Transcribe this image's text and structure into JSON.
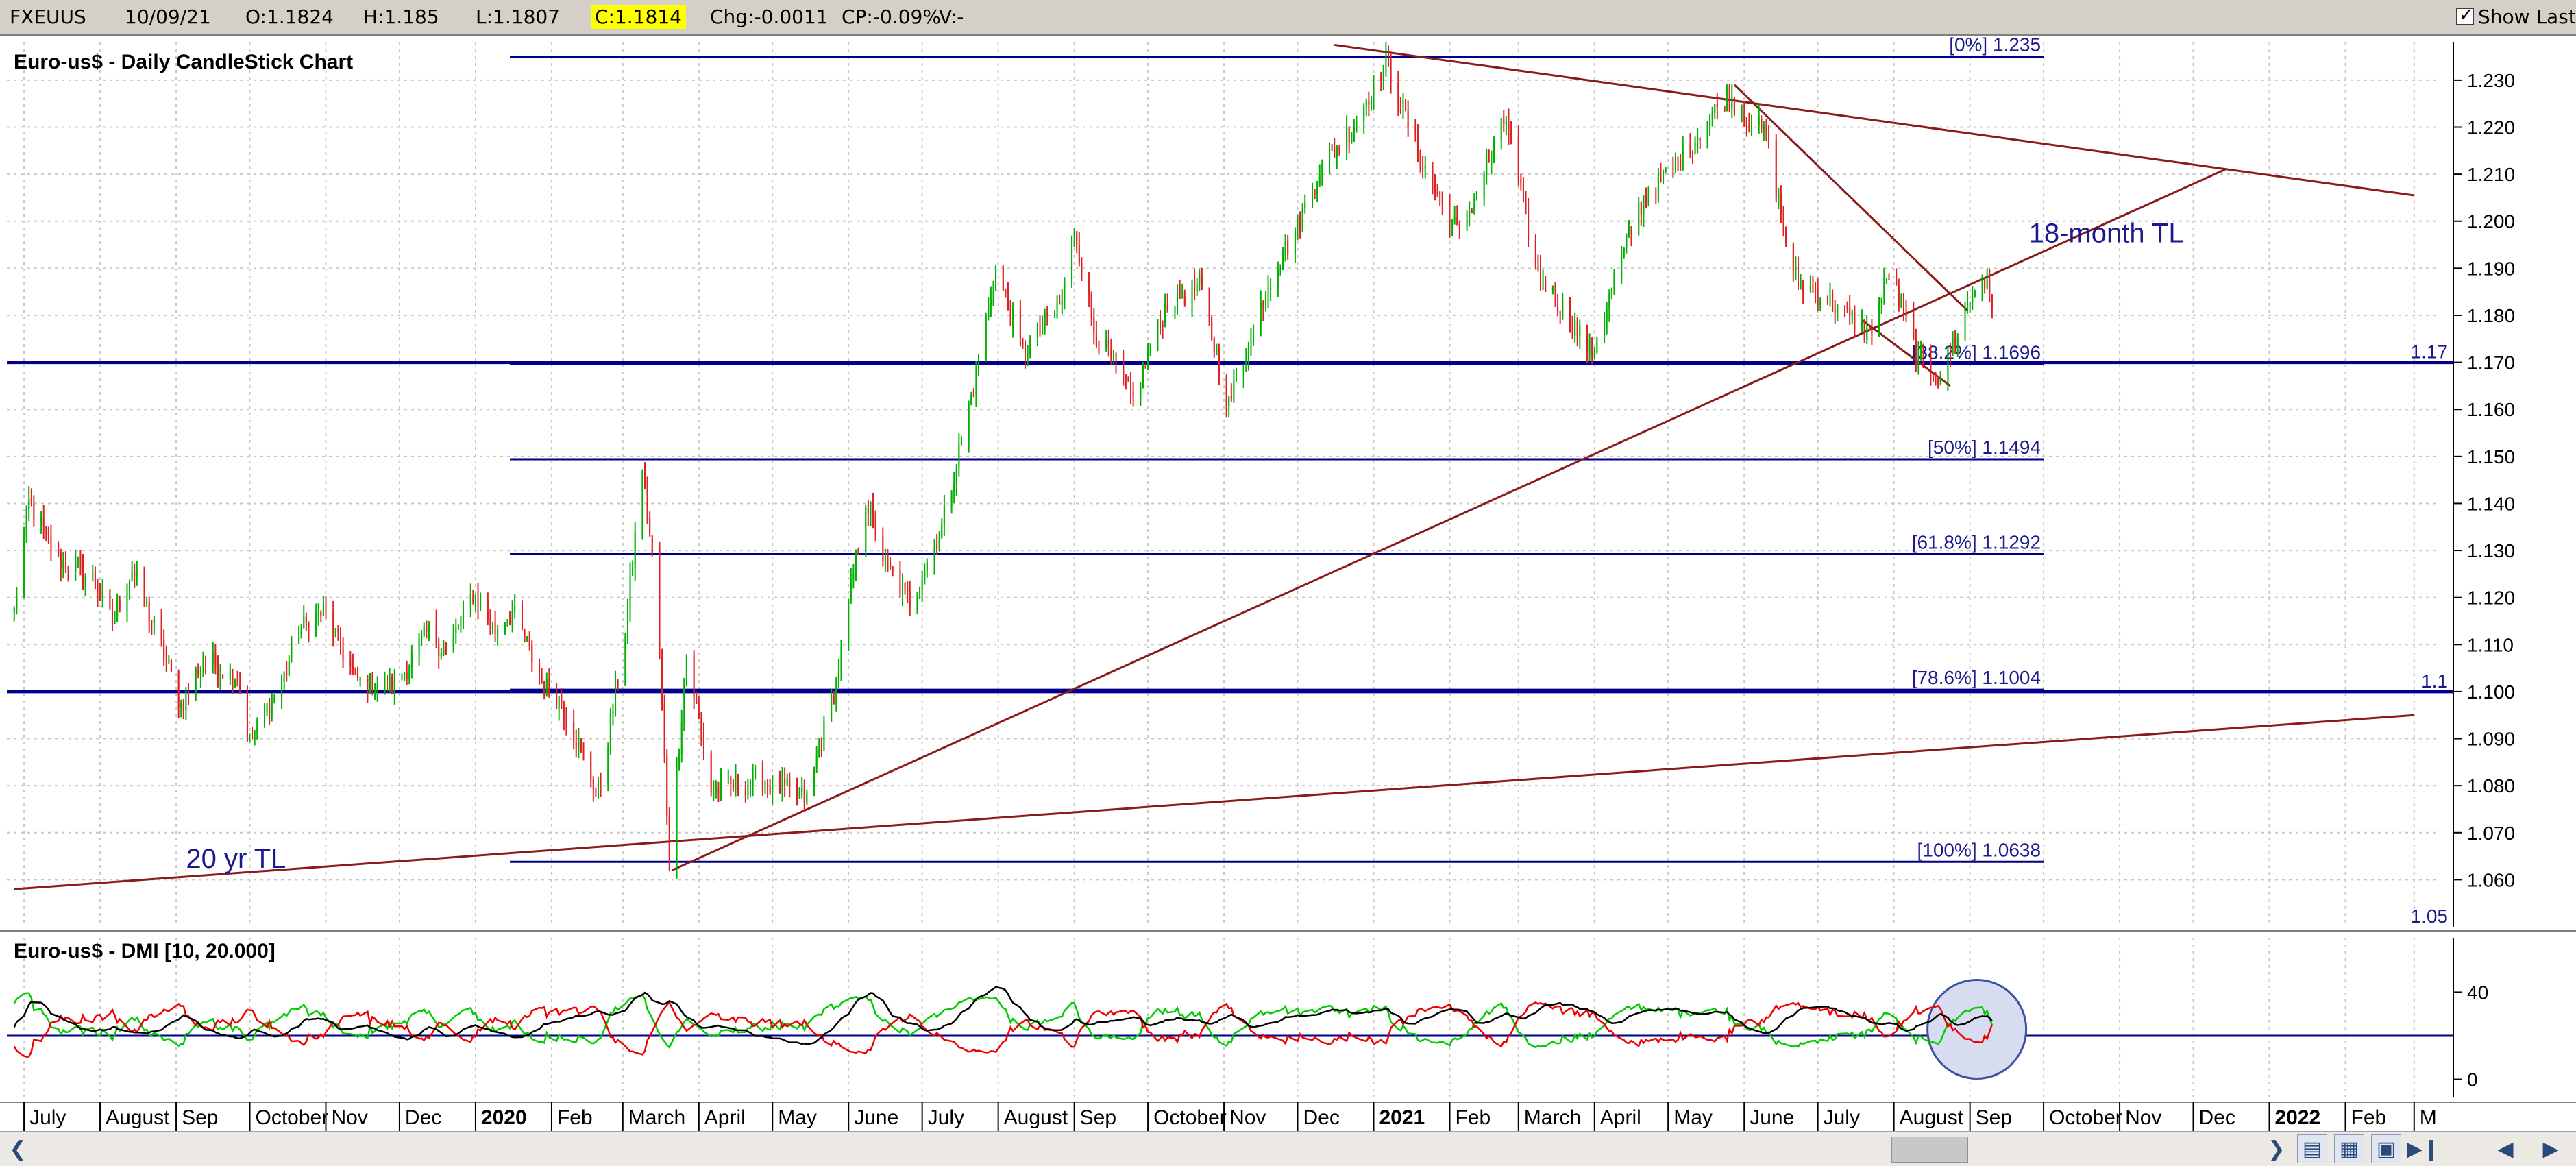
{
  "infobar": {
    "symbol": "FXEUUS",
    "date": "10/09/21",
    "open": "O:1.1824",
    "high": "H:1.185",
    "low": "L:1.1807",
    "close": "C:1.1814",
    "change": "Chg:-0.0011",
    "change_pct": "CP:-0.09%",
    "volume": "V:-",
    "show_last_label": "Show Last",
    "show_last_checked": true
  },
  "colors": {
    "up_candle": "#00b000",
    "down_candle": "#e02020",
    "trendline": "#8b1a1a",
    "fib_line": "#00008b",
    "annotation_text": "#1a1a8c",
    "adx_line": "#000000",
    "plus_di": "#00cc00",
    "minus_di": "#ee0000",
    "highlight_circle_fill": "#d8dcf0",
    "highlight_circle_stroke": "#4050a0",
    "grid": "#c8c8c8"
  },
  "icons": [
    "scroll-left-icon",
    "scroll-right-icon",
    "zoom-out-icon",
    "zoom-in-icon",
    "fit-icon",
    "end-icon",
    "page-left-icon",
    "page-right-icon"
  ],
  "chart_data": [
    {
      "type": "candlestick",
      "title": "Euro-us$ - Daily CandleStick Chart",
      "ylim": [
        1.05,
        1.238
      ],
      "yticks": [
        "1.060",
        "1.070",
        "1.080",
        "1.090",
        "1.100",
        "1.110",
        "1.120",
        "1.130",
        "1.140",
        "1.150",
        "1.160",
        "1.170",
        "1.180",
        "1.190",
        "1.200",
        "1.210",
        "1.220",
        "1.230"
      ],
      "axis_markers": [
        {
          "label": "1.17",
          "value": 1.17
        },
        {
          "label": "1.1",
          "value": 1.1
        },
        {
          "label": "1.05",
          "value": 1.05
        }
      ],
      "x_months": [
        "July",
        "August",
        "Sep",
        "October",
        "Nov",
        "Dec",
        "2020",
        "Feb",
        "March",
        "April",
        "May",
        "June",
        "July",
        "August",
        "Sep",
        "October",
        "Nov",
        "Dec",
        "2021",
        "Feb",
        "March",
        "April",
        "May",
        "June",
        "July",
        "August",
        "Sep",
        "October",
        "Nov",
        "Dec",
        "2022",
        "Feb",
        "M"
      ],
      "x_years_bold": [
        "2020",
        "2021",
        "2022"
      ],
      "x_range": [
        "2019-07",
        "2022-03"
      ],
      "grid": true,
      "price_path": [
        {
          "date": "2019-06-27",
          "value": 1.117
        },
        {
          "date": "2019-07-03",
          "value": 1.14
        },
        {
          "date": "2019-07-15",
          "value": 1.128
        },
        {
          "date": "2019-07-29",
          "value": 1.124
        },
        {
          "date": "2019-08-06",
          "value": 1.115
        },
        {
          "date": "2019-08-14",
          "value": 1.126
        },
        {
          "date": "2019-08-27",
          "value": 1.108
        },
        {
          "date": "2019-09-03",
          "value": 1.097
        },
        {
          "date": "2019-09-12",
          "value": 1.107
        },
        {
          "date": "2019-09-26",
          "value": 1.103
        },
        {
          "date": "2019-10-01",
          "value": 1.089
        },
        {
          "date": "2019-10-15",
          "value": 1.103
        },
        {
          "date": "2019-10-21",
          "value": 1.113
        },
        {
          "date": "2019-10-31",
          "value": 1.117
        },
        {
          "date": "2019-11-14",
          "value": 1.102
        },
        {
          "date": "2019-11-29",
          "value": 1.101
        },
        {
          "date": "2019-12-13",
          "value": 1.113
        },
        {
          "date": "2019-12-20",
          "value": 1.108
        },
        {
          "date": "2019-12-31",
          "value": 1.121
        },
        {
          "date": "2020-01-09",
          "value": 1.113
        },
        {
          "date": "2020-01-16",
          "value": 1.117
        },
        {
          "date": "2020-01-29",
          "value": 1.101
        },
        {
          "date": "2020-02-05",
          "value": 1.098
        },
        {
          "date": "2020-02-20",
          "value": 1.078
        },
        {
          "date": "2020-03-02",
          "value": 1.112
        },
        {
          "date": "2020-03-09",
          "value": 1.148
        },
        {
          "date": "2020-03-15",
          "value": 1.118
        },
        {
          "date": "2020-03-20",
          "value": 1.064
        },
        {
          "date": "2020-03-27",
          "value": 1.108
        },
        {
          "date": "2020-04-06",
          "value": 1.079
        },
        {
          "date": "2020-04-27",
          "value": 1.081
        },
        {
          "date": "2020-05-15",
          "value": 1.077
        },
        {
          "date": "2020-05-27",
          "value": 1.102
        },
        {
          "date": "2020-06-08",
          "value": 1.141
        },
        {
          "date": "2020-06-16",
          "value": 1.127
        },
        {
          "date": "2020-06-26",
          "value": 1.119
        },
        {
          "date": "2020-07-09",
          "value": 1.135
        },
        {
          "date": "2020-07-22",
          "value": 1.165
        },
        {
          "date": "2020-07-31",
          "value": 1.19
        },
        {
          "date": "2020-08-11",
          "value": 1.172
        },
        {
          "date": "2020-08-27",
          "value": 1.183
        },
        {
          "date": "2020-09-01",
          "value": 1.199
        },
        {
          "date": "2020-09-09",
          "value": 1.177
        },
        {
          "date": "2020-09-25",
          "value": 1.162
        },
        {
          "date": "2020-10-09",
          "value": 1.183
        },
        {
          "date": "2020-10-22",
          "value": 1.186
        },
        {
          "date": "2020-11-03",
          "value": 1.161
        },
        {
          "date": "2020-11-19",
          "value": 1.187
        },
        {
          "date": "2020-12-01",
          "value": 1.199
        },
        {
          "date": "2020-12-10",
          "value": 1.211
        },
        {
          "date": "2020-12-23",
          "value": 1.22
        },
        {
          "date": "2021-01-06",
          "value": 1.234
        },
        {
          "date": "2021-01-21",
          "value": 1.212
        },
        {
          "date": "2021-02-05",
          "value": 1.197
        },
        {
          "date": "2021-02-24",
          "value": 1.222
        },
        {
          "date": "2021-03-08",
          "value": 1.19
        },
        {
          "date": "2021-03-31",
          "value": 1.172
        },
        {
          "date": "2021-04-19",
          "value": 1.203
        },
        {
          "date": "2021-05-07",
          "value": 1.214
        },
        {
          "date": "2021-05-25",
          "value": 1.227
        },
        {
          "date": "2021-06-10",
          "value": 1.218
        },
        {
          "date": "2021-06-21",
          "value": 1.188
        },
        {
          "date": "2021-07-06",
          "value": 1.183
        },
        {
          "date": "2021-07-22",
          "value": 1.176
        },
        {
          "date": "2021-07-30",
          "value": 1.189
        },
        {
          "date": "2021-08-11",
          "value": 1.171
        },
        {
          "date": "2021-08-20",
          "value": 1.167
        },
        {
          "date": "2021-08-31",
          "value": 1.182
        },
        {
          "date": "2021-09-06",
          "value": 1.189
        },
        {
          "date": "2021-09-10",
          "value": 1.1814
        }
      ],
      "fib_levels": [
        {
          "label": "[0%] 1.235",
          "value": 1.235
        },
        {
          "label": "[38.2%] 1.1696",
          "value": 1.1696
        },
        {
          "label": "[50%] 1.1494",
          "value": 1.1494
        },
        {
          "label": "[61.8%] 1.1292",
          "value": 1.1292
        },
        {
          "label": "[78.6%] 1.1004",
          "value": 1.1004
        },
        {
          "label": "[100%] 1.0638",
          "value": 1.0638
        }
      ],
      "trendlines": [
        {
          "label": "20 yr TL",
          "from": {
            "date": "2019-06-27",
            "value": 1.058
          },
          "to": {
            "date": "2022-03-01",
            "value": 1.095
          }
        },
        {
          "label": "18-month TL",
          "from": {
            "date": "2020-03-21",
            "value": 1.062
          },
          "to": {
            "date": "2021-12-14",
            "value": 1.211
          }
        },
        {
          "label": "",
          "from": {
            "date": "2020-12-16",
            "value": 1.2375
          },
          "to": {
            "date": "2022-03-01",
            "value": 1.2055
          }
        },
        {
          "label": "",
          "from": {
            "date": "2021-05-28",
            "value": 1.229
          },
          "to": {
            "date": "2021-08-31",
            "value": 1.181
          }
        },
        {
          "label": "",
          "from": {
            "date": "2021-07-19",
            "value": 1.179
          },
          "to": {
            "date": "2021-08-24",
            "value": 1.165
          }
        }
      ],
      "annotations": [
        "20 yr TL",
        "18-month TL"
      ]
    },
    {
      "type": "line",
      "title": "Euro-us$ - DMI [10, 20.000]",
      "ylim": [
        -8,
        65
      ],
      "yticks": [
        "40",
        "0"
      ],
      "threshold": 20,
      "series": [],
      "highlight": {
        "shape": "circle",
        "date": "2021-09-01",
        "value": 23
      }
    }
  ]
}
